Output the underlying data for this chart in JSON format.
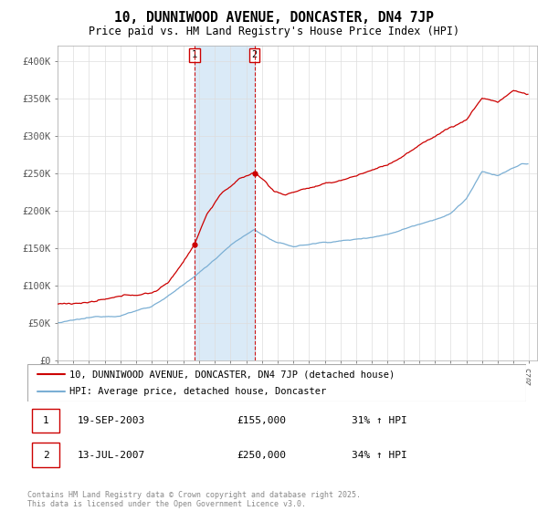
{
  "title": "10, DUNNIWOOD AVENUE, DONCASTER, DN4 7JP",
  "subtitle": "Price paid vs. HM Land Registry's House Price Index (HPI)",
  "ylim": [
    0,
    420000
  ],
  "yticks": [
    0,
    50000,
    100000,
    150000,
    200000,
    250000,
    300000,
    350000,
    400000
  ],
  "ytick_labels": [
    "£0",
    "£50K",
    "£100K",
    "£150K",
    "£200K",
    "£250K",
    "£300K",
    "£350K",
    "£400K"
  ],
  "sale1": {
    "date": "19-SEP-2003",
    "price": 155000,
    "price_str": "£155,000",
    "hpi_note": "31% ↑ HPI"
  },
  "sale2": {
    "date": "13-JUL-2007",
    "price": 250000,
    "price_str": "£250,000",
    "hpi_note": "34% ↑ HPI"
  },
  "sale1_x": 2003.72,
  "sale2_x": 2007.53,
  "xlim_left": 1995.0,
  "xlim_right": 2025.5,
  "property_color": "#cc0000",
  "hpi_color": "#7bafd4",
  "shade_color": "#daeaf7",
  "grid_color": "#dddddd",
  "legend1": "10, DUNNIWOOD AVENUE, DONCASTER, DN4 7JP (detached house)",
  "legend2": "HPI: Average price, detached house, Doncaster",
  "footer": "Contains HM Land Registry data © Crown copyright and database right 2025.\nThis data is licensed under the Open Government Licence v3.0.",
  "title_fontsize": 10.5,
  "subtitle_fontsize": 8.5,
  "axis_fontsize": 7.5,
  "legend_fontsize": 7.5,
  "table_fontsize": 8,
  "footer_fontsize": 6
}
